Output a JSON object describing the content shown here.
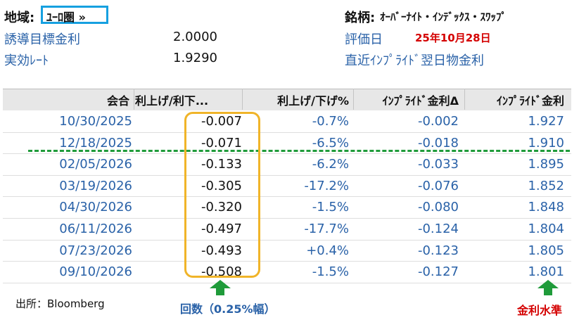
{
  "header": {
    "region_label": "地域:",
    "region_value": "ﾕｰﾛ圏 »",
    "ticker_label": "銘柄:",
    "ticker_value": "ｵｰﾊﾞｰﾅｲﾄ・ｲﾝﾃﾞｯｸｽ・ｽﾜｯﾌﾟ",
    "target_rate_label": "誘導目標金利",
    "target_rate_value": "2.0000",
    "effective_rate_label": "実効ﾚｰﾄ",
    "effective_rate_value": "1.9290",
    "eval_date_label": "評価日",
    "eval_date_value": "25年10月28日",
    "recent_rate_label": "直近ｲﾝﾌﾟﾗｲﾄﾞ翌日物金利"
  },
  "table": {
    "columns": [
      "会合",
      "利上げ/利下...",
      "利上げ/下げ%",
      "ｲﾝﾌﾟﾗｲﾄﾞ金利Δ",
      "ｲﾝﾌﾟﾗｲﾄﾞ金利"
    ],
    "rows": [
      {
        "meeting": "10/30/2025",
        "hikes": "-0.007",
        "pct": "-0.7%",
        "delta": "-0.002",
        "rate": "1.927"
      },
      {
        "meeting": "12/18/2025",
        "hikes": "-0.071",
        "pct": "-6.5%",
        "delta": "-0.018",
        "rate": "1.910"
      },
      {
        "meeting": "02/05/2026",
        "hikes": "-0.133",
        "pct": "-6.2%",
        "delta": "-0.033",
        "rate": "1.895"
      },
      {
        "meeting": "03/19/2026",
        "hikes": "-0.305",
        "pct": "-17.2%",
        "delta": "-0.076",
        "rate": "1.852"
      },
      {
        "meeting": "04/30/2026",
        "hikes": "-0.320",
        "pct": "-1.5%",
        "delta": "-0.080",
        "rate": "1.848"
      },
      {
        "meeting": "06/11/2026",
        "hikes": "-0.497",
        "pct": "-17.7%",
        "delta": "-0.124",
        "rate": "1.804"
      },
      {
        "meeting": "07/23/2026",
        "hikes": "-0.493",
        "pct": "+0.4%",
        "delta": "-0.123",
        "rate": "1.805"
      },
      {
        "meeting": "09/10/2026",
        "hikes": "-0.508",
        "pct": "-1.5%",
        "delta": "-0.127",
        "rate": "1.801"
      }
    ]
  },
  "footer": {
    "source": "出所：Bloomberg",
    "count_caption": "回数（0.25%幅）",
    "rate_caption": "金利水準"
  },
  "colors": {
    "accent_blue": "#2a62a8",
    "highlight_box": "#16a0e0",
    "orange_box": "#f0b429",
    "green": "#1f9b3a",
    "red": "#d40000"
  }
}
